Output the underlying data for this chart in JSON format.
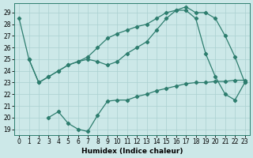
{
  "xlabel": "Humidex (Indice chaleur)",
  "bg_color": "#cce8e8",
  "line_color": "#2d7d6e",
  "grid_color": "#aad0d0",
  "xlim": [
    -0.5,
    23.5
  ],
  "ylim": [
    18.5,
    29.8
  ],
  "yticks": [
    19,
    20,
    21,
    22,
    23,
    24,
    25,
    26,
    27,
    28,
    29
  ],
  "xticks": [
    0,
    1,
    2,
    3,
    4,
    5,
    6,
    7,
    8,
    9,
    10,
    11,
    12,
    13,
    14,
    15,
    16,
    17,
    18,
    19,
    20,
    21,
    22,
    23
  ],
  "line1_x": [
    0,
    1,
    2,
    3,
    4,
    5,
    6,
    7,
    8,
    9,
    10,
    11,
    12,
    13,
    14,
    15,
    16,
    17,
    18,
    19,
    20,
    21,
    22,
    23
  ],
  "line1_y": [
    28.5,
    25.0,
    23.0,
    23.5,
    24.0,
    24.5,
    24.8,
    25.2,
    26.0,
    26.8,
    27.2,
    27.5,
    27.8,
    28.0,
    28.5,
    29.0,
    29.2,
    29.5,
    29.0,
    29.0,
    28.5,
    27.0,
    25.2,
    23.0
  ],
  "line2_x": [
    1,
    2,
    3,
    4,
    5,
    6,
    7,
    8,
    9,
    10,
    11,
    12,
    13,
    14,
    15,
    16,
    17,
    18,
    19,
    20,
    21,
    22,
    23
  ],
  "line2_y": [
    25.0,
    23.0,
    23.5,
    24.0,
    24.5,
    24.8,
    25.0,
    24.8,
    24.5,
    24.8,
    25.5,
    26.0,
    26.5,
    27.5,
    28.5,
    29.2,
    29.2,
    28.5,
    25.5,
    23.5,
    22.0,
    21.5,
    23.0
  ],
  "line3_x": [
    3,
    4,
    5,
    6,
    7,
    8,
    9,
    10,
    11,
    12,
    13,
    14,
    15,
    16,
    17,
    18,
    19,
    20,
    21,
    22,
    23
  ],
  "line3_y": [
    20.0,
    20.5,
    19.5,
    19.0,
    18.8,
    20.2,
    21.4,
    21.5,
    21.5,
    21.8,
    22.0,
    22.3,
    22.5,
    22.7,
    22.9,
    23.0,
    23.0,
    23.1,
    23.1,
    23.2,
    23.2
  ]
}
